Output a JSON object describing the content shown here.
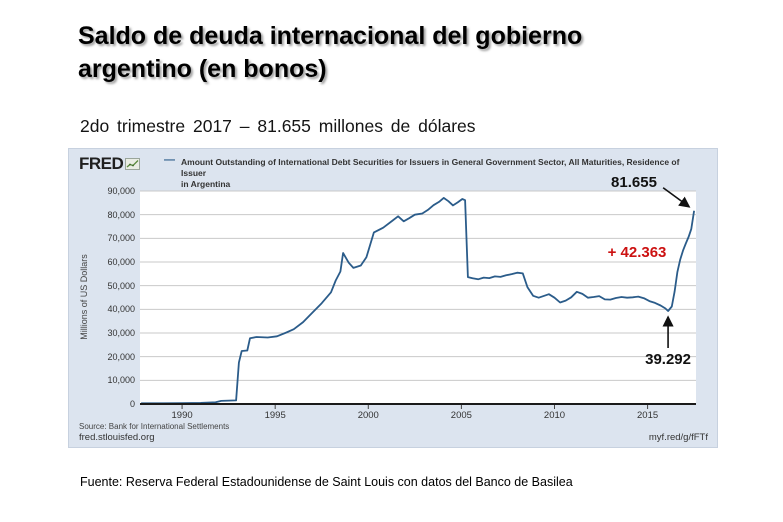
{
  "slide": {
    "title_line1": "Saldo de deuda internacional del gobierno",
    "title_line2": "argentino (en bonos)",
    "subtitle": "2do trimestre 2017 – 81.655 millones de dólares",
    "caption": "Fuente: Reserva Federal Estadounidense de Saint Louis con datos del Banco de Basilea"
  },
  "chart": {
    "brand": "FRED",
    "legend_line1": "Amount Outstanding of International Debt Securities for Issuers in General Government Sector, All Maturities, Residence of Issuer",
    "legend_line2": "in Argentina",
    "source_line": "Source: Bank for International Settlements",
    "site": "fred.stlouisfed.org",
    "short_url": "myf.red/g/fFTf",
    "colors": {
      "line": "#2b5c8a",
      "panel_bg": "#dce4ef",
      "grid": "#c9c9c9",
      "axis": "#1a1a1a",
      "annotation_red": "#cc1111",
      "annotation_black": "#111111"
    }
  },
  "chart_data": {
    "type": "line",
    "title": "Amount Outstanding of International Debt Securities for Issuers in General Government Sector, All Maturities, Residence of Issuer in Argentina",
    "xlabel": "",
    "ylabel": "Millions of US Dollars",
    "xlim": [
      1987.74,
      2017.6
    ],
    "ylim": [
      0,
      90000
    ],
    "grid": true,
    "legend_position": "top",
    "x_ticks": [
      1990,
      1995,
      2000,
      2005,
      2010,
      2015
    ],
    "x_tick_labels": [
      "1990",
      "1995",
      "2000",
      "2005",
      "2010",
      "2015"
    ],
    "y_ticks": [
      0,
      10000,
      20000,
      30000,
      40000,
      50000,
      60000,
      70000,
      80000,
      90000
    ],
    "y_tick_labels": [
      "0",
      "10,000",
      "20,000",
      "30,000",
      "40,000",
      "50,000",
      "60,000",
      "70,000",
      "80,000",
      "90,000"
    ],
    "series": [
      {
        "name": "Amount Outstanding of International Debt Securities for Issuers in General Government Sector, All Maturities, Residence of Issuer in Argentina",
        "units": "Millions of US Dollars",
        "points": [
          [
            1987.8,
            300
          ],
          [
            1989.0,
            300
          ],
          [
            1990.0,
            350
          ],
          [
            1991.0,
            450
          ],
          [
            1991.8,
            700
          ],
          [
            1992.1,
            1300
          ],
          [
            1992.9,
            1500
          ],
          [
            1993.05,
            17500
          ],
          [
            1993.2,
            22400
          ],
          [
            1993.5,
            22600
          ],
          [
            1993.65,
            27800
          ],
          [
            1994.0,
            28300
          ],
          [
            1994.6,
            28100
          ],
          [
            1995.1,
            28600
          ],
          [
            1995.6,
            30200
          ],
          [
            1996.0,
            31600
          ],
          [
            1996.5,
            34600
          ],
          [
            1997.0,
            38600
          ],
          [
            1997.5,
            42600
          ],
          [
            1998.0,
            47200
          ],
          [
            1998.25,
            52200
          ],
          [
            1998.5,
            56000
          ],
          [
            1998.65,
            63800
          ],
          [
            1998.95,
            59700
          ],
          [
            1999.2,
            57500
          ],
          [
            1999.6,
            58500
          ],
          [
            1999.9,
            62000
          ],
          [
            2000.3,
            72500
          ],
          [
            2000.8,
            74500
          ],
          [
            2001.3,
            77500
          ],
          [
            2001.6,
            79300
          ],
          [
            2001.9,
            77200
          ],
          [
            2002.2,
            78500
          ],
          [
            2002.5,
            80000
          ],
          [
            2002.9,
            80500
          ],
          [
            2003.2,
            82000
          ],
          [
            2003.5,
            84000
          ],
          [
            2003.8,
            85400
          ],
          [
            2004.05,
            87100
          ],
          [
            2004.3,
            85700
          ],
          [
            2004.55,
            83900
          ],
          [
            2004.8,
            85200
          ],
          [
            2005.05,
            86600
          ],
          [
            2005.2,
            86100
          ],
          [
            2005.35,
            53600
          ],
          [
            2005.6,
            53100
          ],
          [
            2005.9,
            52700
          ],
          [
            2006.2,
            53400
          ],
          [
            2006.5,
            53200
          ],
          [
            2006.8,
            53900
          ],
          [
            2007.1,
            53700
          ],
          [
            2007.4,
            54400
          ],
          [
            2007.7,
            54900
          ],
          [
            2008.0,
            55500
          ],
          [
            2008.3,
            55200
          ],
          [
            2008.55,
            49300
          ],
          [
            2008.85,
            45700
          ],
          [
            2009.15,
            44900
          ],
          [
            2009.45,
            45700
          ],
          [
            2009.7,
            46400
          ],
          [
            2010.0,
            44900
          ],
          [
            2010.3,
            42900
          ],
          [
            2010.6,
            43700
          ],
          [
            2010.9,
            45100
          ],
          [
            2011.2,
            47400
          ],
          [
            2011.5,
            46500
          ],
          [
            2011.8,
            44900
          ],
          [
            2012.1,
            45200
          ],
          [
            2012.4,
            45600
          ],
          [
            2012.7,
            44200
          ],
          [
            2013.0,
            44100
          ],
          [
            2013.3,
            44800
          ],
          [
            2013.6,
            45200
          ],
          [
            2013.9,
            44900
          ],
          [
            2014.2,
            45100
          ],
          [
            2014.5,
            45400
          ],
          [
            2014.8,
            44700
          ],
          [
            2015.1,
            43500
          ],
          [
            2015.4,
            42700
          ],
          [
            2015.7,
            41600
          ],
          [
            2015.95,
            40400
          ],
          [
            2016.1,
            39292
          ],
          [
            2016.3,
            41200
          ],
          [
            2016.45,
            47500
          ],
          [
            2016.6,
            55800
          ],
          [
            2016.75,
            61000
          ],
          [
            2016.9,
            64800
          ],
          [
            2017.05,
            67800
          ],
          [
            2017.2,
            70600
          ],
          [
            2017.35,
            74000
          ],
          [
            2017.5,
            81655
          ]
        ]
      }
    ],
    "annotations": [
      {
        "id": "end",
        "text": "81.655",
        "color": "#111111",
        "anchor_year": 2017.5,
        "anchor_value": 81655
      },
      {
        "id": "gain",
        "text": "+ 42.363",
        "color": "#cc1111"
      },
      {
        "id": "trough",
        "text": "39.292",
        "color": "#111111",
        "anchor_year": 2016.1,
        "anchor_value": 39292
      }
    ]
  }
}
